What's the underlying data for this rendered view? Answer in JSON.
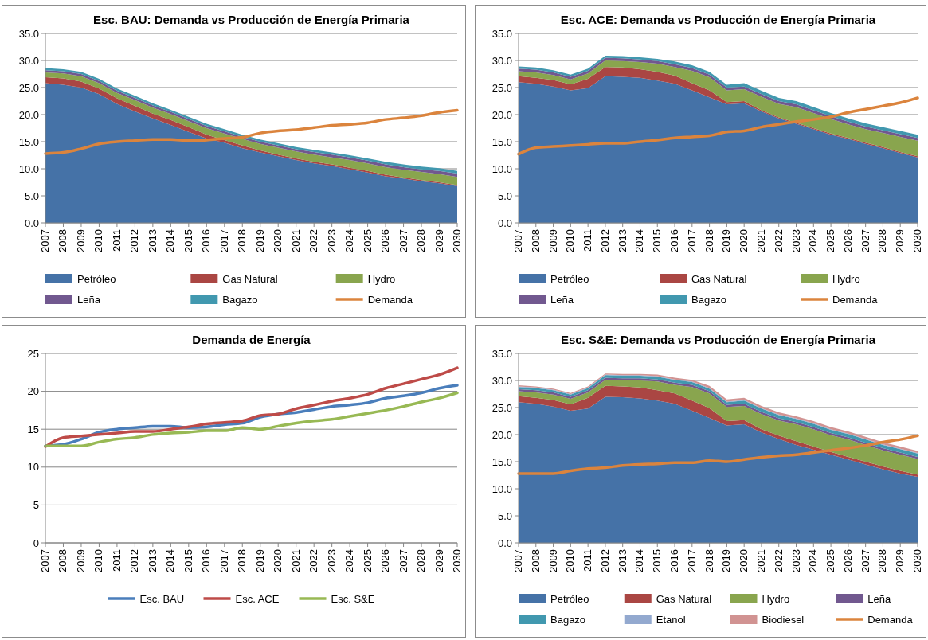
{
  "chart_data": [
    {
      "type": "area",
      "title": "Esc. BAU: Demanda vs Producción de Energía Primaria",
      "stacked": true,
      "grid": "y",
      "legend": "bottom",
      "ylim": [
        0,
        35
      ],
      "yticks": [
        {
          "value": 0,
          "label": "0.0"
        },
        {
          "value": 5,
          "label": "5.0"
        },
        {
          "value": 10,
          "label": "10.0"
        },
        {
          "value": 15,
          "label": "15.0"
        },
        {
          "value": 20,
          "label": "20.0"
        },
        {
          "value": 25,
          "label": "25.0"
        },
        {
          "value": 30,
          "label": "30.0"
        },
        {
          "value": 35,
          "label": "35.0"
        }
      ],
      "categories": [
        "2007",
        "2008",
        "2009",
        "2010",
        "2011",
        "2012",
        "2013",
        "2014",
        "2015",
        "2016",
        "2017",
        "2018",
        "2019",
        "2020",
        "2021",
        "2022",
        "2023",
        "2024",
        "2025",
        "2026",
        "2027",
        "2028",
        "2029",
        "2030"
      ],
      "series": [
        {
          "name": "Petróleo",
          "color": "#4572a7",
          "values": [
            25.8,
            25.5,
            25.0,
            23.8,
            22.0,
            20.6,
            19.3,
            18.1,
            16.8,
            15.6,
            14.8,
            13.8,
            13.0,
            12.3,
            11.6,
            11.0,
            10.5,
            9.9,
            9.3,
            8.6,
            8.2,
            7.7,
            7.3,
            6.8
          ]
        },
        {
          "name": "Gas Natural",
          "color": "#aa4643",
          "values": [
            1.1,
            1.2,
            1.1,
            1.0,
            1.0,
            1.0,
            0.9,
            0.9,
            0.9,
            0.7,
            0.5,
            0.5,
            0.4,
            0.3,
            0.3,
            0.3,
            0.3,
            0.3,
            0.3,
            0.3,
            0.2,
            0.2,
            0.2,
            0.2
          ]
        },
        {
          "name": "Hydro",
          "color": "#89a54e",
          "values": [
            0.9,
            0.9,
            1.0,
            1.0,
            1.0,
            1.1,
            1.1,
            1.1,
            1.1,
            1.2,
            1.2,
            1.2,
            1.2,
            1.3,
            1.3,
            1.3,
            1.3,
            1.4,
            1.4,
            1.4,
            1.4,
            1.5,
            1.5,
            1.5
          ]
        },
        {
          "name": "Leña",
          "color": "#71588f",
          "values": [
            0.4,
            0.4,
            0.4,
            0.4,
            0.4,
            0.4,
            0.4,
            0.4,
            0.4,
            0.4,
            0.4,
            0.4,
            0.4,
            0.4,
            0.4,
            0.5,
            0.5,
            0.5,
            0.5,
            0.5,
            0.5,
            0.5,
            0.6,
            0.6
          ]
        },
        {
          "name": "Bagazo",
          "color": "#4198af",
          "values": [
            0.4,
            0.4,
            0.4,
            0.4,
            0.4,
            0.4,
            0.4,
            0.4,
            0.4,
            0.4,
            0.4,
            0.4,
            0.4,
            0.4,
            0.4,
            0.4,
            0.4,
            0.4,
            0.4,
            0.5,
            0.5,
            0.5,
            0.5,
            0.5
          ]
        },
        {
          "name": "Demanda",
          "type": "line",
          "color": "#db843d",
          "values": [
            12.8,
            13.0,
            13.7,
            14.6,
            15.0,
            15.2,
            15.4,
            15.4,
            15.2,
            15.3,
            15.6,
            15.8,
            16.6,
            17.0,
            17.2,
            17.6,
            18.0,
            18.2,
            18.5,
            19.1,
            19.4,
            19.8,
            20.4,
            20.8
          ]
        }
      ]
    },
    {
      "type": "area",
      "title": "Esc. ACE: Demanda vs Producción de Energía Primaria",
      "stacked": true,
      "grid": "y",
      "legend": "bottom",
      "ylim": [
        0,
        35
      ],
      "yticks": [
        {
          "value": 0,
          "label": "0.0"
        },
        {
          "value": 5,
          "label": "5.0"
        },
        {
          "value": 10,
          "label": "10.0"
        },
        {
          "value": 15,
          "label": "15.0"
        },
        {
          "value": 20,
          "label": "20.0"
        },
        {
          "value": 25,
          "label": "25.0"
        },
        {
          "value": 30,
          "label": "30.0"
        },
        {
          "value": 35,
          "label": "35.0"
        }
      ],
      "categories": [
        "2007",
        "2008",
        "2009",
        "2010",
        "2011",
        "2012",
        "2013",
        "2014",
        "2015",
        "2016",
        "2017",
        "2018",
        "2019",
        "2020",
        "2021",
        "2022",
        "2023",
        "2024",
        "2025",
        "2026",
        "2027",
        "2028",
        "2029",
        "2030"
      ],
      "series": [
        {
          "name": "Petróleo",
          "color": "#4572a7",
          "values": [
            26.0,
            25.7,
            25.2,
            24.5,
            24.9,
            27.1,
            27.0,
            26.8,
            26.3,
            25.7,
            24.5,
            23.2,
            21.9,
            22.1,
            20.6,
            19.3,
            18.3,
            17.3,
            16.3,
            15.5,
            14.6,
            13.8,
            12.9,
            12.1
          ]
        },
        {
          "name": "Gas Natural",
          "color": "#aa4643",
          "values": [
            1.1,
            1.1,
            1.2,
            1.1,
            1.7,
            1.7,
            1.7,
            1.6,
            1.6,
            1.5,
            1.3,
            1.3,
            0.4,
            0.4,
            0.2,
            0.2,
            0.2,
            0.2,
            0.2,
            0.2,
            0.2,
            0.2,
            0.2,
            0.2
          ]
        },
        {
          "name": "Hydro",
          "color": "#89a54e",
          "values": [
            0.9,
            1.0,
            0.9,
            0.9,
            1.0,
            1.2,
            1.2,
            1.3,
            1.5,
            1.6,
            2.3,
            2.4,
            2.2,
            2.2,
            2.5,
            2.5,
            2.9,
            2.8,
            2.7,
            2.5,
            2.5,
            2.6,
            2.8,
            2.9
          ]
        },
        {
          "name": "Leña",
          "color": "#71588f",
          "values": [
            0.5,
            0.5,
            0.5,
            0.5,
            0.5,
            0.5,
            0.5,
            0.5,
            0.5,
            0.5,
            0.5,
            0.5,
            0.5,
            0.5,
            0.5,
            0.5,
            0.5,
            0.5,
            0.5,
            0.5,
            0.5,
            0.5,
            0.5,
            0.5
          ]
        },
        {
          "name": "Bagazo",
          "color": "#4198af",
          "values": [
            0.4,
            0.4,
            0.4,
            0.4,
            0.4,
            0.4,
            0.4,
            0.4,
            0.4,
            0.5,
            0.5,
            0.5,
            0.5,
            0.6,
            0.6,
            0.6,
            0.6,
            0.6,
            0.6,
            0.6,
            0.6,
            0.6,
            0.6,
            0.6
          ]
        },
        {
          "name": "Demanda",
          "type": "line",
          "color": "#db843d",
          "values": [
            12.7,
            13.9,
            14.1,
            14.3,
            14.5,
            14.7,
            14.7,
            15.0,
            15.3,
            15.7,
            15.9,
            16.1,
            16.8,
            17.0,
            17.7,
            18.2,
            18.7,
            19.1,
            19.6,
            20.4,
            21.0,
            21.6,
            22.2,
            23.1
          ]
        }
      ]
    },
    {
      "type": "line",
      "title": "Demanda de Energía",
      "grid": "y",
      "legend": "bottom",
      "ylim": [
        0,
        25
      ],
      "yticks": [
        0,
        5,
        10,
        15,
        20,
        25
      ],
      "categories": [
        "2007",
        "2008",
        "2009",
        "2010",
        "2011",
        "2012",
        "2013",
        "2014",
        "2015",
        "2016",
        "2017",
        "2018",
        "2019",
        "2020",
        "2021",
        "2022",
        "2023",
        "2024",
        "2025",
        "2026",
        "2027",
        "2028",
        "2029",
        "2030"
      ],
      "series": [
        {
          "name": "Esc. BAU",
          "color": "#4a7ebb",
          "values": [
            12.8,
            13.0,
            13.7,
            14.6,
            15.0,
            15.2,
            15.4,
            15.4,
            15.2,
            15.3,
            15.6,
            15.8,
            16.6,
            17.0,
            17.2,
            17.6,
            18.0,
            18.2,
            18.5,
            19.1,
            19.4,
            19.8,
            20.4,
            20.8
          ]
        },
        {
          "name": "Esc. ACE",
          "color": "#be4b48",
          "values": [
            12.7,
            13.9,
            14.1,
            14.3,
            14.5,
            14.7,
            14.7,
            15.0,
            15.3,
            15.7,
            15.9,
            16.1,
            16.8,
            17.0,
            17.7,
            18.2,
            18.7,
            19.1,
            19.6,
            20.4,
            21.0,
            21.6,
            22.2,
            23.1
          ]
        },
        {
          "name": "Esc. S&E",
          "color": "#98b954",
          "values": [
            12.8,
            12.8,
            12.8,
            13.3,
            13.7,
            13.9,
            14.3,
            14.5,
            14.6,
            14.8,
            14.8,
            15.2,
            15.0,
            15.4,
            15.8,
            16.1,
            16.3,
            16.7,
            17.1,
            17.5,
            18.0,
            18.6,
            19.1,
            19.8
          ]
        }
      ]
    },
    {
      "type": "area",
      "title": "Esc. S&E: Demanda vs Producción de Energía Primaria",
      "stacked": true,
      "grid": "y",
      "legend": "bottom",
      "ylim": [
        0,
        35
      ],
      "yticks": [
        {
          "value": 0,
          "label": "0.0"
        },
        {
          "value": 5,
          "label": "5.0"
        },
        {
          "value": 10,
          "label": "10.0"
        },
        {
          "value": 15,
          "label": "15.0"
        },
        {
          "value": 20,
          "label": "20.0"
        },
        {
          "value": 25,
          "label": "25.0"
        },
        {
          "value": 30,
          "label": "30.0"
        },
        {
          "value": 35,
          "label": "35.0"
        }
      ],
      "categories": [
        "2007",
        "2008",
        "2009",
        "2010",
        "2011",
        "2012",
        "2013",
        "2014",
        "2015",
        "2016",
        "2017",
        "2018",
        "2019",
        "2020",
        "2021",
        "2022",
        "2023",
        "2024",
        "2025",
        "2026",
        "2027",
        "2028",
        "2029",
        "2030"
      ],
      "series": [
        {
          "name": "Petróleo",
          "color": "#4572a7",
          "values": [
            26.0,
            25.7,
            25.2,
            24.4,
            24.8,
            27.0,
            26.9,
            26.7,
            26.3,
            25.7,
            24.4,
            23.1,
            21.7,
            21.9,
            20.4,
            19.2,
            18.1,
            17.2,
            16.3,
            15.4,
            14.5,
            13.6,
            12.8,
            12.2
          ]
        },
        {
          "name": "Gas Natural",
          "color": "#aa4643",
          "values": [
            1.1,
            1.1,
            1.2,
            1.2,
            2.0,
            2.0,
            2.0,
            2.0,
            1.9,
            1.9,
            1.9,
            1.8,
            0.8,
            0.8,
            0.6,
            0.6,
            0.7,
            0.6,
            0.5,
            0.5,
            0.5,
            0.5,
            0.5,
            0.4
          ]
        },
        {
          "name": "Hydro",
          "color": "#89a54e",
          "values": [
            0.9,
            1.0,
            1.0,
            1.0,
            1.0,
            1.1,
            1.1,
            1.3,
            1.6,
            1.6,
            2.5,
            2.7,
            2.6,
            2.6,
            2.8,
            2.8,
            3.1,
            3.2,
            3.1,
            3.2,
            3.1,
            3.0,
            3.0,
            2.9
          ]
        },
        {
          "name": "Leña",
          "color": "#71588f",
          "values": [
            0.4,
            0.4,
            0.4,
            0.4,
            0.4,
            0.4,
            0.4,
            0.4,
            0.4,
            0.4,
            0.4,
            0.4,
            0.4,
            0.4,
            0.4,
            0.4,
            0.4,
            0.4,
            0.4,
            0.4,
            0.4,
            0.4,
            0.4,
            0.4
          ]
        },
        {
          "name": "Bagazo",
          "color": "#4198af",
          "values": [
            0.4,
            0.4,
            0.4,
            0.4,
            0.4,
            0.5,
            0.5,
            0.5,
            0.5,
            0.5,
            0.5,
            0.5,
            0.5,
            0.6,
            0.6,
            0.6,
            0.6,
            0.6,
            0.6,
            0.6,
            0.6,
            0.6,
            0.6,
            0.6
          ]
        },
        {
          "name": "Etanol",
          "color": "#93a9cf",
          "values": [
            0.1,
            0.1,
            0.1,
            0.1,
            0.1,
            0.1,
            0.1,
            0.1,
            0.1,
            0.1,
            0.1,
            0.1,
            0.1,
            0.1,
            0.1,
            0.1,
            0.1,
            0.1,
            0.1,
            0.1,
            0.1,
            0.1,
            0.1,
            0.1
          ]
        },
        {
          "name": "Biodiesel",
          "color": "#d19392",
          "values": [
            0.2,
            0.2,
            0.2,
            0.2,
            0.2,
            0.2,
            0.2,
            0.2,
            0.3,
            0.3,
            0.3,
            0.4,
            0.4,
            0.4,
            0.4,
            0.4,
            0.4,
            0.4,
            0.4,
            0.4,
            0.4,
            0.4,
            0.4,
            0.4
          ]
        },
        {
          "name": "Demanda",
          "type": "line",
          "color": "#db843d",
          "values": [
            12.8,
            12.8,
            12.8,
            13.3,
            13.7,
            13.9,
            14.3,
            14.5,
            14.6,
            14.8,
            14.8,
            15.2,
            15.0,
            15.4,
            15.8,
            16.1,
            16.3,
            16.7,
            17.1,
            17.5,
            18.0,
            18.6,
            19.1,
            19.8
          ]
        }
      ]
    }
  ]
}
